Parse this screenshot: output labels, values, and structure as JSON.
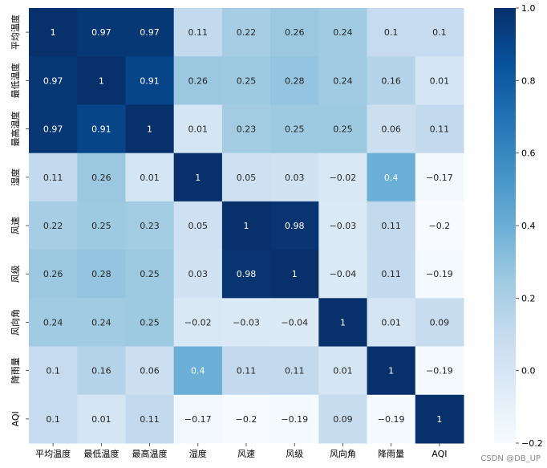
{
  "chart_data": {
    "type": "heatmap",
    "title": "",
    "xlabel": "",
    "ylabel": "",
    "x_labels": [
      "平均温度",
      "最低温度",
      "最高温度",
      "湿度",
      "风速",
      "风级",
      "风向角",
      "降雨量",
      "AQI"
    ],
    "y_labels": [
      "平均温度",
      "最低温度",
      "最高温度",
      "湿度",
      "风速",
      "风级",
      "风向角",
      "降雨量",
      "AQI"
    ],
    "values": [
      [
        1,
        0.97,
        0.97,
        0.11,
        0.22,
        0.26,
        0.24,
        0.1,
        0.1
      ],
      [
        0.97,
        1,
        0.91,
        0.26,
        0.25,
        0.28,
        0.24,
        0.16,
        0.01
      ],
      [
        0.97,
        0.91,
        1,
        0.01,
        0.23,
        0.25,
        0.25,
        0.06,
        0.11
      ],
      [
        0.11,
        0.26,
        0.01,
        1,
        0.05,
        0.03,
        -0.02,
        0.4,
        -0.17
      ],
      [
        0.22,
        0.25,
        0.23,
        0.05,
        1,
        0.98,
        -0.03,
        0.11,
        -0.2
      ],
      [
        0.26,
        0.28,
        0.25,
        0.03,
        0.98,
        1,
        -0.04,
        0.11,
        -0.19
      ],
      [
        0.24,
        0.24,
        0.25,
        -0.02,
        -0.03,
        -0.04,
        1,
        0.01,
        0.09
      ],
      [
        0.1,
        0.16,
        0.06,
        0.4,
        0.11,
        0.11,
        0.01,
        1,
        -0.19
      ],
      [
        0.1,
        0.01,
        0.11,
        -0.17,
        -0.2,
        -0.19,
        0.09,
        -0.19,
        1
      ]
    ],
    "colormap": "Blues",
    "colorbar": {
      "vmin": -0.2,
      "vmax": 1.0,
      "ticks": [
        1.0,
        0.8,
        0.6,
        0.4,
        0.2,
        0.0,
        -0.2
      ],
      "tick_labels": [
        "1.0",
        "0.8",
        "0.6",
        "0.4",
        "0.2",
        "0.0",
        "−0.2"
      ],
      "color_low": "#f7fbff",
      "color_high": "#08306b"
    }
  },
  "watermark": "CSDN @DB_UP"
}
